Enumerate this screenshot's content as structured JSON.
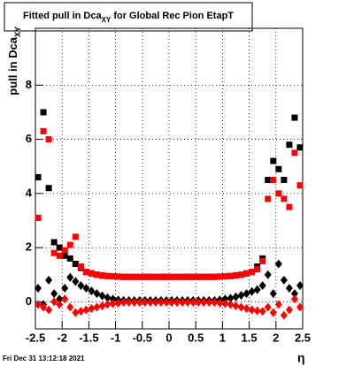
{
  "chart_data": {
    "type": "scatter",
    "title": "Fitted pull in Dca",
    "title_subscript": "XY",
    "title_rest": " for Global Rec Pion EtapT",
    "ylabel": "pull in Dca",
    "ylabel_subscript": "XY",
    "xlabel": "η",
    "timestamp": "Fri Dec 31 13:12:18 2021",
    "x": [
      -2.45,
      -2.35,
      -2.25,
      -2.15,
      -2.05,
      -1.95,
      -1.85,
      -1.75,
      -1.65,
      -1.55,
      -1.45,
      -1.35,
      -1.25,
      -1.15,
      -1.05,
      -0.95,
      -0.85,
      -0.75,
      -0.65,
      -0.55,
      -0.45,
      -0.35,
      -0.25,
      -0.15,
      -0.05,
      0.05,
      0.15,
      0.25,
      0.35,
      0.45,
      0.55,
      0.65,
      0.75,
      0.85,
      0.95,
      1.05,
      1.15,
      1.25,
      1.35,
      1.45,
      1.55,
      1.65,
      1.75,
      1.85,
      1.95,
      2.05,
      2.15,
      2.25,
      2.35,
      2.45
    ],
    "series": [
      {
        "color": "#000000",
        "marker": "square",
        "values": [
          4.6,
          7.0,
          4.2,
          2.2,
          2.0,
          1.7,
          1.6,
          1.4,
          1.25,
          1.1,
          1.05,
          1.0,
          0.97,
          0.95,
          0.94,
          0.93,
          0.92,
          0.92,
          0.92,
          0.92,
          0.92,
          0.92,
          0.92,
          0.92,
          0.92,
          0.92,
          0.92,
          0.92,
          0.92,
          0.92,
          0.92,
          0.92,
          0.92,
          0.92,
          0.93,
          0.94,
          0.95,
          0.97,
          1.0,
          1.05,
          1.1,
          1.3,
          1.6,
          4.5,
          5.2,
          4.9,
          4.5,
          5.8,
          6.8,
          5.7
        ]
      },
      {
        "color": "#000000",
        "marker": "diamond",
        "values": [
          0.5,
          -0.1,
          0.8,
          0.3,
          0.1,
          0.5,
          0.9,
          0.75,
          0.6,
          0.5,
          0.4,
          0.3,
          0.22,
          0.15,
          0.1,
          0.07,
          0.05,
          0.05,
          0.05,
          0.05,
          0.05,
          0.05,
          0.05,
          0.05,
          0.05,
          0.05,
          0.05,
          0.05,
          0.05,
          0.05,
          0.05,
          0.05,
          0.05,
          0.05,
          0.07,
          0.1,
          0.13,
          0.18,
          0.24,
          0.3,
          0.38,
          0.45,
          0.6,
          1.0,
          0.3,
          1.4,
          0.8,
          0.5,
          0.3,
          0.6
        ]
      },
      {
        "color": "#ff0000",
        "marker": "square",
        "values": [
          3.1,
          6.3,
          6.0,
          1.8,
          1.7,
          1.9,
          2.1,
          2.4,
          1.3,
          1.1,
          1.05,
          1.0,
          0.97,
          0.95,
          0.94,
          0.93,
          0.92,
          0.92,
          0.92,
          0.92,
          0.92,
          0.92,
          0.92,
          0.92,
          0.92,
          0.92,
          0.92,
          0.92,
          0.92,
          0.92,
          0.92,
          0.92,
          0.92,
          0.92,
          0.93,
          0.94,
          0.95,
          0.97,
          1.0,
          1.05,
          1.1,
          1.2,
          1.5,
          3.8,
          4.5,
          4.0,
          3.8,
          3.5,
          5.5,
          4.3
        ]
      },
      {
        "color": "#ff0000",
        "marker": "diamond",
        "values": [
          -0.1,
          -0.2,
          -0.3,
          0.0,
          -0.1,
          0.1,
          -0.2,
          -0.4,
          -0.35,
          -0.3,
          -0.25,
          -0.2,
          -0.15,
          -0.1,
          -0.07,
          -0.05,
          -0.02,
          -0.02,
          -0.02,
          -0.02,
          -0.02,
          -0.02,
          -0.02,
          -0.02,
          -0.02,
          -0.02,
          -0.02,
          -0.02,
          -0.02,
          -0.02,
          -0.02,
          -0.02,
          -0.02,
          -0.02,
          -0.05,
          -0.07,
          -0.1,
          -0.15,
          -0.2,
          -0.25,
          -0.3,
          -0.33,
          -0.35,
          -0.2,
          -0.4,
          -0.1,
          -0.5,
          -0.3,
          0.1,
          -0.2
        ]
      }
    ],
    "xlim": [
      -2.5,
      2.5
    ],
    "xticks": [
      -2.5,
      -2,
      -1.5,
      -1,
      -0.5,
      0,
      0.5,
      1,
      1.5,
      2,
      2.5
    ],
    "ylim": [
      -1,
      10.1
    ],
    "yticks": [
      0,
      2,
      4,
      6,
      8
    ],
    "grid": true
  }
}
